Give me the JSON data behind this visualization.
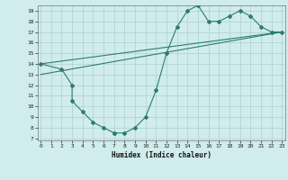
{
  "line1_x": [
    0,
    2,
    3,
    3,
    4,
    5,
    6,
    7,
    7,
    8,
    9,
    10,
    11,
    12,
    13,
    14,
    15,
    16,
    17,
    18,
    19,
    20,
    21,
    22,
    23
  ],
  "line1_y": [
    14,
    13.5,
    12,
    10.5,
    9.5,
    8.5,
    8,
    7.5,
    7.5,
    7.5,
    8,
    9,
    11.5,
    15,
    17.5,
    19.0,
    19.5,
    18,
    18,
    18.5,
    19,
    18.5,
    17.5,
    17,
    17
  ],
  "line2_x": [
    0,
    23
  ],
  "line2_y": [
    14,
    17
  ],
  "line3_x": [
    0,
    23
  ],
  "line3_y": [
    13,
    17
  ],
  "color": "#2d7d6e",
  "bg_color": "#d0ecec",
  "grid_color": "#aed0d0",
  "xlabel": "Humidex (Indice chaleur)",
  "xlim": [
    0,
    23
  ],
  "ylim": [
    7,
    19
  ],
  "yticks": [
    7,
    8,
    9,
    10,
    11,
    12,
    13,
    14,
    15,
    16,
    17,
    18,
    19
  ],
  "xticks": [
    0,
    1,
    2,
    3,
    4,
    5,
    6,
    7,
    8,
    9,
    10,
    11,
    12,
    13,
    14,
    15,
    16,
    17,
    18,
    19,
    20,
    21,
    22,
    23
  ]
}
